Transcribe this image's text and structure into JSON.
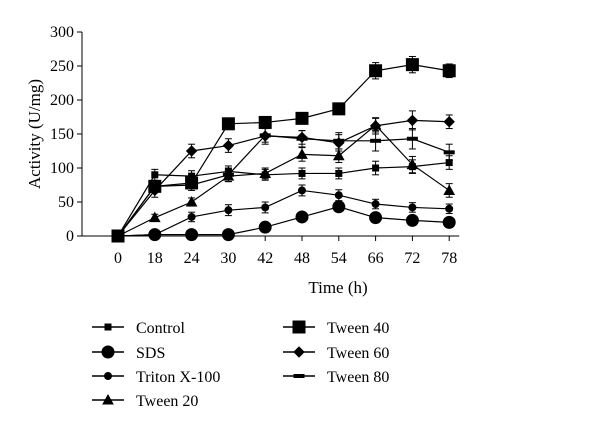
{
  "chart_data": {
    "type": "line",
    "title": "",
    "xlabel": "Time (h)",
    "ylabel": "Activity (U/mg)",
    "categories": [
      "0",
      "18",
      "24",
      "30",
      "42",
      "48",
      "54",
      "66",
      "72",
      "78"
    ],
    "ylim": [
      0,
      300
    ],
    "yticks": [
      0,
      50,
      100,
      150,
      200,
      250,
      300
    ],
    "grid": false,
    "legend_position": "bottom",
    "series": [
      {
        "name": "Control",
        "marker": "small-square",
        "values": [
          0,
          90,
          88,
          95,
          90,
          92,
          92,
          100,
          102,
          108
        ],
        "errors": [
          0,
          8,
          8,
          8,
          8,
          8,
          8,
          10,
          10,
          10
        ]
      },
      {
        "name": "SDS",
        "marker": "circle",
        "values": [
          0,
          2,
          2,
          2,
          13,
          28,
          43,
          27,
          23,
          20
        ],
        "errors": [
          0,
          2,
          2,
          2,
          5,
          5,
          7,
          7,
          7,
          7
        ]
      },
      {
        "name": "Triton X-100",
        "marker": "small-circle",
        "values": [
          0,
          2,
          28,
          38,
          42,
          67,
          60,
          47,
          42,
          40
        ],
        "errors": [
          0,
          2,
          7,
          8,
          8,
          8,
          8,
          7,
          7,
          7
        ]
      },
      {
        "name": "Tween 20",
        "marker": "triangle",
        "values": [
          0,
          27,
          50,
          88,
          92,
          120,
          118,
          163,
          105,
          67
        ],
        "errors": [
          0,
          5,
          6,
          8,
          8,
          10,
          10,
          10,
          12,
          10
        ]
      },
      {
        "name": "Tween 40",
        "marker": "square",
        "values": [
          0,
          73,
          78,
          165,
          167,
          173,
          187,
          243,
          252,
          243
        ],
        "errors": [
          0,
          8,
          8,
          5,
          5,
          7,
          5,
          12,
          12,
          10
        ]
      },
      {
        "name": "Tween 60",
        "marker": "diamond",
        "values": [
          0,
          67,
          125,
          133,
          147,
          145,
          137,
          162,
          170,
          168
        ],
        "errors": [
          0,
          10,
          10,
          10,
          12,
          10,
          12,
          12,
          14,
          10
        ]
      },
      {
        "name": "Tween 80",
        "marker": "dash",
        "values": [
          0,
          73,
          75,
          90,
          148,
          143,
          140,
          140,
          143,
          123
        ],
        "errors": [
          0,
          8,
          8,
          10,
          10,
          12,
          12,
          15,
          15,
          12
        ]
      }
    ]
  }
}
